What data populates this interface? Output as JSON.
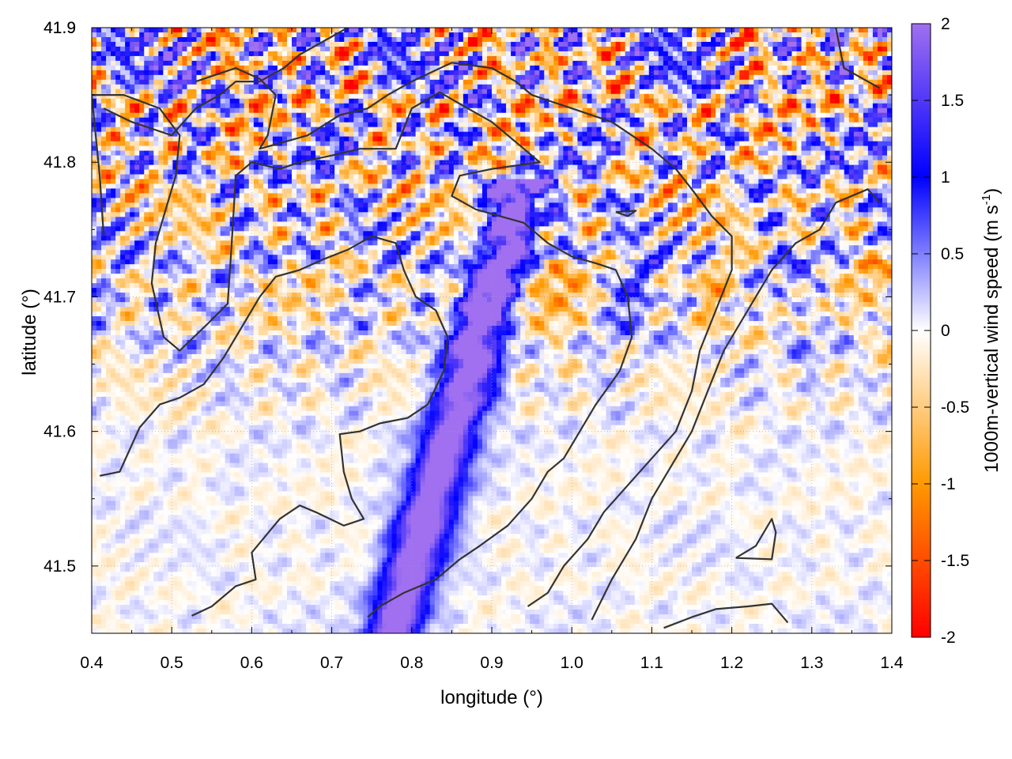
{
  "chart_data": {
    "type": "heatmap",
    "title": "",
    "xlabel": "longitude (°)",
    "ylabel": "latitude (°)",
    "xlim": [
      0.4,
      1.4
    ],
    "ylim": [
      41.45,
      41.9
    ],
    "x_ticks": [
      "0.4",
      "0.5",
      "0.6",
      "0.7",
      "0.8",
      "0.9",
      "1.0",
      "1.1",
      "1.2",
      "1.3",
      "1.4"
    ],
    "y_ticks": [
      "41.5",
      "41.6",
      "41.7",
      "41.8",
      "41.9"
    ],
    "grid": true,
    "colorbar": {
      "label_main": "1000m-vertical wind speed (m s",
      "label_sup": "-1",
      "label_end": ")",
      "range": [
        -2,
        2
      ],
      "ticks": [
        "-2",
        "-1.5",
        "-1",
        "-0.5",
        "0",
        "0.5",
        "1",
        "1.5",
        "2"
      ],
      "colors": {
        "-2": "#ff0000",
        "-1": "#ff9900",
        "0": "#ffffff",
        "1": "#0000ff",
        "2": "#a070f0"
      }
    },
    "contour_color": "#333333",
    "contours": [
      [
        [
          0.41,
          41.567
        ],
        [
          0.435,
          41.57
        ],
        [
          0.46,
          41.603
        ],
        [
          0.485,
          41.62
        ],
        [
          0.51,
          41.625
        ],
        [
          0.54,
          41.635
        ],
        [
          0.565,
          41.655
        ],
        [
          0.59,
          41.68
        ],
        [
          0.61,
          41.7
        ],
        [
          0.63,
          41.715
        ],
        [
          0.66,
          41.72
        ],
        [
          0.69,
          41.728
        ],
        [
          0.72,
          41.735
        ],
        [
          0.75,
          41.745
        ],
        [
          0.78,
          41.74
        ],
        [
          0.79,
          41.72
        ],
        [
          0.805,
          41.7
        ],
        [
          0.83,
          41.69
        ],
        [
          0.845,
          41.67
        ],
        [
          0.84,
          41.645
        ],
        [
          0.82,
          41.62
        ],
        [
          0.795,
          41.61
        ],
        [
          0.76,
          41.606
        ],
        [
          0.735,
          41.6
        ],
        [
          0.71,
          41.598
        ],
        [
          0.715,
          41.57
        ],
        [
          0.725,
          41.55
        ],
        [
          0.74,
          41.535
        ],
        [
          0.715,
          41.53
        ],
        [
          0.68,
          41.54
        ],
        [
          0.66,
          41.545
        ],
        [
          0.635,
          41.535
        ],
        [
          0.6,
          41.51
        ],
        [
          0.605,
          41.49
        ],
        [
          0.58,
          41.485
        ],
        [
          0.55,
          41.47
        ],
        [
          0.525,
          41.463
        ]
      ],
      [
        [
          0.415,
          41.745
        ],
        [
          0.41,
          41.79
        ],
        [
          0.4,
          41.85
        ],
        [
          0.44,
          41.85
        ],
        [
          0.485,
          41.84
        ],
        [
          0.51,
          41.82
        ],
        [
          0.505,
          41.79
        ],
        [
          0.48,
          41.74
        ],
        [
          0.475,
          41.71
        ],
        [
          0.49,
          41.67
        ],
        [
          0.51,
          41.66
        ],
        [
          0.545,
          41.68
        ],
        [
          0.57,
          41.695
        ],
        [
          0.575,
          41.74
        ],
        [
          0.58,
          41.79
        ],
        [
          0.6,
          41.8
        ],
        [
          0.635,
          41.795
        ],
        [
          0.66,
          41.8
        ],
        [
          0.7,
          41.805
        ],
        [
          0.735,
          41.81
        ],
        [
          0.78,
          41.81
        ],
        [
          0.8,
          41.84
        ],
        [
          0.835,
          41.852
        ],
        [
          0.87,
          41.84
        ],
        [
          0.9,
          41.83
        ],
        [
          0.93,
          41.815
        ],
        [
          0.96,
          41.8
        ],
        [
          0.9,
          41.795
        ],
        [
          0.86,
          41.79
        ],
        [
          0.85,
          41.775
        ],
        [
          0.88,
          41.765
        ],
        [
          0.91,
          41.76
        ],
        [
          0.94,
          41.755
        ],
        [
          0.97,
          41.74
        ],
        [
          1.0,
          41.73
        ],
        [
          1.03,
          41.725
        ],
        [
          1.055,
          41.72
        ],
        [
          1.07,
          41.7
        ],
        [
          1.075,
          41.67
        ],
        [
          1.06,
          41.645
        ],
        [
          1.03,
          41.62
        ],
        [
          1.01,
          41.6
        ],
        [
          0.99,
          41.58
        ],
        [
          0.97,
          41.57
        ],
        [
          0.95,
          41.55
        ],
        [
          0.92,
          41.53
        ],
        [
          0.885,
          41.515
        ],
        [
          0.86,
          41.505
        ],
        [
          0.83,
          41.49
        ],
        [
          0.79,
          41.48
        ],
        [
          0.76,
          41.47
        ],
        [
          0.745,
          41.462
        ]
      ],
      [
        [
          0.53,
          41.86
        ],
        [
          0.58,
          41.87
        ],
        [
          0.61,
          41.862
        ],
        [
          0.63,
          41.85
        ],
        [
          0.62,
          41.82
        ],
        [
          0.61,
          41.81
        ],
        [
          0.64,
          41.815
        ],
        [
          0.67,
          41.82
        ],
        [
          0.71,
          41.835
        ],
        [
          0.745,
          41.84
        ],
        [
          0.77,
          41.85
        ],
        [
          0.8,
          41.86
        ],
        [
          0.85,
          41.874
        ],
        [
          0.9,
          41.87
        ],
        [
          0.93,
          41.86
        ],
        [
          0.95,
          41.85
        ],
        [
          1.0,
          41.84
        ],
        [
          1.05,
          41.83
        ],
        [
          1.1,
          41.81
        ],
        [
          1.13,
          41.795
        ],
        [
          1.15,
          41.78
        ],
        [
          1.175,
          41.76
        ],
        [
          1.2,
          41.745
        ],
        [
          1.2,
          41.72
        ],
        [
          1.18,
          41.69
        ],
        [
          1.16,
          41.66
        ],
        [
          1.15,
          41.63
        ],
        [
          1.13,
          41.6
        ],
        [
          1.1,
          41.58
        ],
        [
          1.07,
          41.56
        ],
        [
          1.04,
          41.54
        ],
        [
          1.02,
          41.52
        ],
        [
          0.99,
          41.5
        ],
        [
          0.97,
          41.48
        ],
        [
          0.945,
          41.47
        ]
      ],
      [
        [
          0.415,
          41.84
        ],
        [
          0.45,
          41.83
        ],
        [
          0.5,
          41.82
        ],
        [
          0.53,
          41.84
        ],
        [
          0.56,
          41.85
        ],
        [
          0.58,
          41.86
        ],
        [
          0.61,
          41.86
        ],
        [
          0.64,
          41.87
        ],
        [
          0.66,
          41.88
        ],
        [
          0.69,
          41.89
        ],
        [
          0.72,
          41.9
        ]
      ],
      [
        [
          1.025,
          41.46
        ],
        [
          1.05,
          41.49
        ],
        [
          1.08,
          41.52
        ],
        [
          1.1,
          41.55
        ],
        [
          1.13,
          41.58
        ],
        [
          1.15,
          41.6
        ],
        [
          1.17,
          41.63
        ],
        [
          1.19,
          41.66
        ],
        [
          1.22,
          41.69
        ],
        [
          1.25,
          41.72
        ],
        [
          1.28,
          41.74
        ],
        [
          1.31,
          41.75
        ],
        [
          1.33,
          41.77
        ],
        [
          1.37,
          41.78
        ],
        [
          1.385,
          41.77
        ]
      ],
      [
        [
          1.115,
          41.454
        ],
        [
          1.15,
          41.462
        ],
        [
          1.18,
          41.468
        ],
        [
          1.22,
          41.47
        ],
        [
          1.25,
          41.472
        ],
        [
          1.27,
          41.458
        ]
      ],
      [
        [
          1.205,
          41.506
        ],
        [
          1.25,
          41.505
        ],
        [
          1.255,
          41.525
        ],
        [
          1.25,
          41.535
        ],
        [
          1.23,
          41.515
        ],
        [
          1.205,
          41.506
        ]
      ],
      [
        [
          1.055,
          41.763
        ],
        [
          1.08,
          41.764
        ],
        [
          1.07,
          41.76
        ],
        [
          1.055,
          41.763
        ]
      ],
      [
        [
          1.33,
          41.9
        ],
        [
          1.34,
          41.87
        ],
        [
          1.37,
          41.86
        ],
        [
          1.385,
          41.855
        ]
      ]
    ]
  }
}
